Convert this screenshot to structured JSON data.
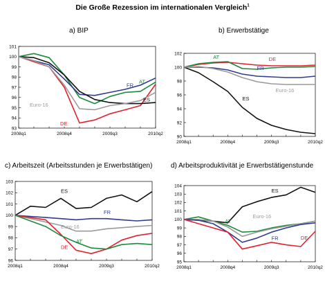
{
  "title": "Die Große Rezession im internationalen Vergleich",
  "title_footnote": "1",
  "colors": {
    "DE": "#e4202e",
    "AT": "#1a8a3c",
    "FR": "#2f3b8f",
    "ES": "#111111",
    "Euro-16": "#9a9a9a"
  },
  "chart_data": [
    {
      "id": "bip",
      "type": "line",
      "title": "a) BIP",
      "x": [
        "2008q1",
        "2008q2",
        "2008q3",
        "2008q4",
        "2009q1",
        "2009q2",
        "2009q3",
        "2009q4",
        "2010q1",
        "2010q2"
      ],
      "xticks": [
        "2008q1",
        "2008q4",
        "2009q3",
        "2010q2"
      ],
      "ylim": [
        93,
        101
      ],
      "yticks": [
        93,
        94,
        95,
        96,
        97,
        98,
        99,
        100,
        101
      ],
      "series": [
        {
          "name": "DE",
          "values": [
            100.0,
            99.5,
            99.0,
            97.0,
            93.5,
            93.8,
            94.4,
            94.8,
            95.2,
            97.3
          ]
        },
        {
          "name": "AT",
          "values": [
            100.0,
            100.3,
            99.9,
            98.2,
            96.0,
            95.4,
            96.1,
            96.5,
            96.6,
            97.5
          ]
        },
        {
          "name": "FR",
          "values": [
            100.0,
            99.6,
            99.2,
            97.8,
            96.3,
            96.2,
            96.5,
            96.8,
            97.2,
            97.9
          ]
        },
        {
          "name": "ES",
          "values": [
            100.0,
            99.9,
            99.4,
            98.2,
            96.6,
            95.8,
            95.5,
            95.4,
            95.4,
            95.5
          ]
        },
        {
          "name": "Euro-16",
          "values": [
            100.0,
            99.6,
            99.0,
            97.2,
            94.9,
            94.8,
            95.2,
            95.4,
            95.7,
            96.5
          ]
        }
      ],
      "labels": [
        {
          "text": "FR",
          "series": "FR",
          "x": "2009q4",
          "y": 96.9
        },
        {
          "text": "AT",
          "series": "AT",
          "x": "2010q1",
          "y": 97.1
        },
        {
          "text": "ES",
          "series": "ES",
          "x": "2010q1",
          "y": 95.6
        },
        {
          "text": "DE",
          "series": "DE",
          "x": "2008q4",
          "y": 93.8
        },
        {
          "text": "Euro-16",
          "series": "Euro-16",
          "x": "2008q2",
          "y": 95.1
        }
      ]
    },
    {
      "id": "erwerb",
      "type": "line",
      "title": "b) Erwerbstätige",
      "x": [
        "2008q1",
        "2008q2",
        "2008q3",
        "2008q4",
        "2009q1",
        "2009q2",
        "2009q3",
        "2009q4",
        "2010q1",
        "2010q2"
      ],
      "xticks": [
        "2008q1",
        "2008q4",
        "2009q3",
        "2010q2"
      ],
      "ylim": [
        90,
        102
      ],
      "yticks": [
        90,
        92,
        94,
        96,
        98,
        100,
        102
      ],
      "series": [
        {
          "name": "DE",
          "values": [
            100.0,
            100.4,
            100.6,
            100.7,
            100.5,
            100.3,
            100.2,
            100.2,
            100.2,
            100.3
          ]
        },
        {
          "name": "AT",
          "values": [
            100.0,
            100.5,
            100.7,
            100.8,
            99.8,
            99.7,
            99.9,
            100.0,
            100.0,
            100.1
          ]
        },
        {
          "name": "FR",
          "values": [
            100.0,
            100.0,
            99.9,
            99.6,
            99.0,
            98.7,
            98.6,
            98.5,
            98.5,
            98.7
          ]
        },
        {
          "name": "ES",
          "values": [
            100.0,
            99.2,
            97.9,
            96.5,
            94.2,
            92.6,
            91.6,
            91.0,
            90.6,
            90.4
          ]
        },
        {
          "name": "Euro-16",
          "values": [
            100.0,
            100.1,
            99.8,
            99.3,
            98.5,
            97.9,
            97.6,
            97.5,
            97.5,
            97.5
          ]
        }
      ],
      "labels": [
        {
          "text": "AT",
          "series": "AT",
          "x": "2008q3",
          "y": 101.2
        },
        {
          "text": "DE",
          "series": "DE",
          "x": "2009q3",
          "y": 100.9
        },
        {
          "text": "FR",
          "series": "FR",
          "x": "2009q2",
          "y": 99.0
        },
        {
          "text": "Euro-16",
          "series": "Euro-16",
          "x": "2009q3",
          "y": 97.0
        },
        {
          "text": "ES",
          "series": "ES",
          "x": "2009q1",
          "y": 95.2
        }
      ]
    },
    {
      "id": "arbeitszeit",
      "type": "line",
      "title": "c) Arbeitszeit (Arbeitsstunden je Erwerbstätigen)",
      "x": [
        "2008q1",
        "2008q2",
        "2008q3",
        "2008q4",
        "2009q1",
        "2009q2",
        "2009q3",
        "2009q4",
        "2010q1",
        "2010q2"
      ],
      "xticks": [
        "2008q1",
        "2008q4",
        "2009q3",
        "2010q2"
      ],
      "ylim": [
        96,
        103
      ],
      "yticks": [
        96,
        97,
        98,
        99,
        100,
        101,
        102,
        103
      ],
      "series": [
        {
          "name": "ES",
          "values": [
            100.0,
            100.8,
            100.7,
            101.5,
            100.6,
            100.7,
            101.5,
            101.8,
            101.2,
            102.1
          ]
        },
        {
          "name": "FR",
          "values": [
            100.0,
            99.9,
            99.8,
            99.7,
            99.6,
            99.7,
            99.7,
            99.6,
            99.5,
            99.6
          ]
        },
        {
          "name": "Euro-16",
          "values": [
            100.0,
            99.7,
            99.4,
            99.1,
            98.6,
            98.6,
            98.8,
            98.9,
            99.0,
            99.1
          ]
        },
        {
          "name": "DE",
          "values": [
            100.0,
            99.8,
            99.6,
            98.3,
            96.9,
            96.6,
            97.0,
            97.8,
            98.2,
            98.4
          ]
        },
        {
          "name": "AT",
          "values": [
            100.0,
            99.5,
            99.0,
            98.2,
            97.6,
            97.1,
            97.0,
            97.4,
            97.5,
            97.4
          ]
        }
      ],
      "labels": [
        {
          "text": "ES",
          "series": "ES",
          "x": "2008q4",
          "y": 102.0
        },
        {
          "text": "FR",
          "series": "FR",
          "x": "2009q3",
          "y": 100.1
        },
        {
          "text": "Euro-16",
          "series": "Euro-16",
          "x": "2008q4",
          "y": 98.7
        },
        {
          "text": "AT",
          "series": "AT",
          "x": "2009q1",
          "y": 97.55
        },
        {
          "text": "DE",
          "series": "DE",
          "x": "2008q4",
          "y": 97.0
        }
      ]
    },
    {
      "id": "produktivitaet",
      "type": "line",
      "title": "d) Arbeitsproduktivität je Erwerbstätigenstunde",
      "x": [
        "2008q1",
        "2008q2",
        "2008q3",
        "2008q4",
        "2009q1",
        "2009q2",
        "2009q3",
        "2009q4",
        "2010q1",
        "2010q2"
      ],
      "xticks": [
        "2008q1",
        "2008q4",
        "2009q3",
        "2010q2"
      ],
      "ylim": [
        95,
        104
      ],
      "yticks": [
        95,
        96,
        97,
        98,
        99,
        100,
        101,
        102,
        103,
        104
      ],
      "series": [
        {
          "name": "ES",
          "values": [
            100.0,
            99.9,
            99.8,
            99.6,
            101.5,
            102.1,
            102.6,
            102.9,
            103.8,
            103.2
          ]
        },
        {
          "name": "AT",
          "values": [
            100.0,
            100.3,
            99.8,
            99.3,
            98.5,
            98.6,
            99.0,
            99.3,
            99.5,
            99.8
          ]
        },
        {
          "name": "Euro-16",
          "values": [
            100.0,
            100.0,
            99.8,
            99.1,
            98.0,
            98.5,
            98.9,
            99.2,
            99.5,
            99.8
          ]
        },
        {
          "name": "FR",
          "values": [
            100.0,
            99.9,
            99.5,
            98.5,
            97.3,
            97.8,
            98.5,
            99.0,
            99.4,
            99.6
          ]
        },
        {
          "name": "DE",
          "values": [
            100.0,
            99.5,
            99.0,
            98.5,
            96.5,
            96.9,
            97.3,
            97.0,
            96.8,
            98.6
          ]
        }
      ],
      "labels": [
        {
          "text": "ES",
          "series": "ES",
          "x": "2009q3",
          "y": 103.2
        },
        {
          "text": "Euro-16",
          "series": "Euro-16",
          "x": "2009q2",
          "y": 100.0
        },
        {
          "text": "AT",
          "series": "AT",
          "x": "2008q4",
          "y": 99.6
        },
        {
          "text": "FR",
          "series": "FR",
          "x": "2009q3",
          "y": 97.4
        },
        {
          "text": "DE",
          "series": "DE",
          "x": "2010q1",
          "y": 97.6
        }
      ]
    }
  ]
}
